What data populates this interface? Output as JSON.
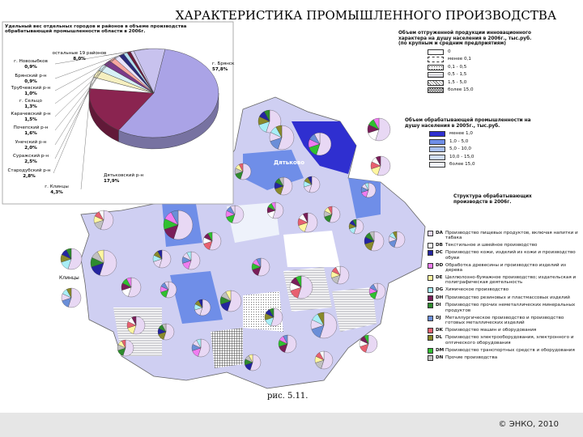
{
  "title": "ХАРАКТЕРИСТИКА ПРОМЫШЛЕННОГО ПРОИЗВОДСТВА",
  "chart_data": {
    "type": "pie",
    "title": "Удельный вес отдельных городов и районов в объеме производства обрабатывающей промышленности области в 2006г.",
    "categories": [
      "г. Брянск",
      "Дятьковский р-н",
      "г. Клинцы",
      "Стародубский р-н",
      "Суражский р-н",
      "Унечский р-н",
      "Почепский р-н",
      "Карачевский р-н",
      "г. Сельцо",
      "Трубчевский р-н",
      "Брянский р-н",
      "г. Новозыбков",
      "остальные 19 районов"
    ],
    "values": [
      57.8,
      17.9,
      4.3,
      2.8,
      2.5,
      2.0,
      1.6,
      1.5,
      1.3,
      1.0,
      0.9,
      0.9,
      8.0
    ],
    "value_labels": [
      "57,8%",
      "17,9%",
      "4,3%",
      "2,8%",
      "2,5%",
      "2,0%",
      "1,6%",
      "1,5%",
      "1,3%",
      "1,0%",
      "0,9%",
      "0,9%",
      "8,0%"
    ],
    "colors": [
      "#aaa3e6",
      "#8a2450",
      "#ffffff",
      "#f5efc0",
      "#d7f0f7",
      "#7b3a8a",
      "#f6a7a0",
      "#e7e3ff",
      "#2a2a7a",
      "#b2dff0",
      "#6b1b3b",
      "#d8d0ef",
      "#c8c2ee"
    ]
  },
  "legend_innovation": {
    "title": "Объем отгруженной продукции инновационного характера на душу населения в 2006г., тыс.руб. (по крупным и средним предприятиям)",
    "items": [
      "0",
      "менее 0,1",
      "0,1 - 0,5",
      "0,5 - 1,5",
      "1,5 - 5,0",
      "более 15,0"
    ]
  },
  "legend_manufacturing": {
    "title": "Объем обрабатывающей промышленности на душу населения в 2005г., тыс.руб.",
    "items": [
      "менее 1,0",
      "1,0 - 5,0",
      "5,0 - 10,0",
      "10,0 - 15,0",
      "более 15,0"
    ],
    "colors": [
      "#2f2fd0",
      "#6f8ee8",
      "#a9c0f0",
      "#cfdcf6",
      "#eef2fb"
    ]
  },
  "legend_structure": {
    "title": "Структура обрабатывающих производств в 2006г.",
    "items": [
      {
        "code": "DA",
        "label": "Производство пищевых продуктов, включая напитки и табака",
        "color": "#e8d8f4"
      },
      {
        "code": "DB",
        "label": "Текстильное и швейное производство",
        "color": "#ffffff"
      },
      {
        "code": "DC",
        "label": "Производство кожи, изделий из кожи и производство обуви",
        "color": "#2424a0"
      },
      {
        "code": "DD",
        "label": "Обработка древесины и производство изделий из дерева",
        "color": "#f07cf0"
      },
      {
        "code": "DE",
        "label": "Целлюлозно-бумажное производство; издательская и полиграфическая деятельность",
        "color": "#fff6a0"
      },
      {
        "code": "DG",
        "label": "Химическое производство",
        "color": "#a8eef6"
      },
      {
        "code": "DH",
        "label": "Производство резиновых и пластмассовых изделий",
        "color": "#7a1e5a"
      },
      {
        "code": "DI",
        "label": "Производство прочих неметаллических минеральных продуктов",
        "color": "#2e8b2e"
      },
      {
        "code": "DJ",
        "label": "Металлургическое производство и производство готовых металлических изделий",
        "color": "#6a8ed8"
      },
      {
        "code": "DK",
        "label": "Производство машин и оборудования",
        "color": "#e86070"
      },
      {
        "code": "DL",
        "label": "Производство электрооборудования, электронного и оптического оборудования",
        "color": "#8a8a2a"
      },
      {
        "code": "DM",
        "label": "Производство транспортных средств и оборудования",
        "color": "#30c030"
      },
      {
        "code": "DN",
        "label": "Прочие производства",
        "color": "#c0c0c0"
      }
    ]
  },
  "map_labels": [
    "Дятьково",
    "Клинцы"
  ],
  "figure_label": "рис. 5.11.",
  "footer": "© ЭНКО, 2010"
}
